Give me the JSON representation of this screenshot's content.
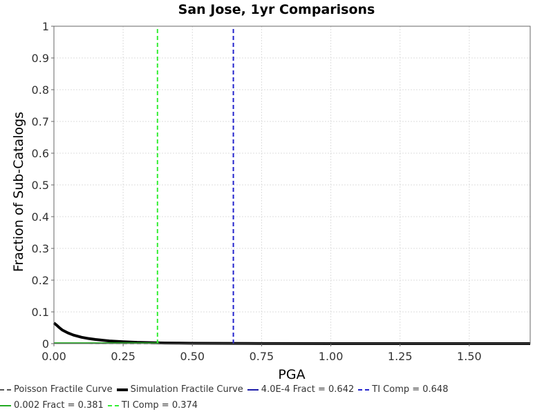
{
  "chart_data": {
    "type": "line",
    "title": "San Jose, 1yr Comparisons",
    "xlabel": "PGA",
    "ylabel": "Fraction of Sub-Catalogs",
    "xlim": [
      0,
      1.72
    ],
    "ylim": [
      0,
      1
    ],
    "grid": true,
    "x_ticks": [
      "0.00",
      "0.25",
      "0.50",
      "0.75",
      "1.00",
      "1.25",
      "1.50"
    ],
    "x_tick_values": [
      0,
      0.25,
      0.5,
      0.75,
      1.0,
      1.25,
      1.5
    ],
    "y_ticks": [
      "0",
      "0.1",
      "0.2",
      "0.3",
      "0.4",
      "0.5",
      "0.6",
      "0.7",
      "0.8",
      "0.9",
      "1"
    ],
    "y_tick_values": [
      0,
      0.1,
      0.2,
      0.3,
      0.4,
      0.5,
      0.6,
      0.7,
      0.8,
      0.9,
      1.0
    ],
    "legend_placement": "bottom",
    "series": [
      {
        "name": "Poisson Fractile Curve",
        "color": "#555555",
        "style": "dashed",
        "x": [
          0.0,
          0.05,
          0.1,
          0.2,
          0.3,
          0.4,
          0.5,
          0.6,
          0.7,
          0.8,
          1.0,
          1.2,
          1.4,
          1.6,
          1.72
        ],
        "y": [
          0.001,
          0.001,
          0.001,
          0.0008,
          0.0005,
          0.0004,
          0.0003,
          0.0002,
          0.0001,
          0.0001,
          0.0,
          0.0,
          0.0,
          0.0,
          0.0
        ]
      },
      {
        "name": "Simulation Fractile Curve",
        "color": "#000000",
        "style": "solid-thick",
        "x": [
          0.0,
          0.01,
          0.02,
          0.03,
          0.05,
          0.07,
          0.1,
          0.125,
          0.15,
          0.2,
          0.25,
          0.3,
          0.35,
          0.4,
          0.45,
          0.5,
          0.6,
          0.7,
          0.8,
          1.0,
          1.2,
          1.4,
          1.6,
          1.72
        ],
        "y": [
          0.065,
          0.058,
          0.05,
          0.043,
          0.034,
          0.027,
          0.02,
          0.016,
          0.013,
          0.0085,
          0.006,
          0.004,
          0.003,
          0.002,
          0.0015,
          0.001,
          0.0007,
          0.0005,
          0.0003,
          0.0001,
          0.0,
          0.0,
          0.0,
          0.0
        ]
      },
      {
        "name": "4.0E-4 Fract = 0.642",
        "color": "#1a1aa8",
        "style": "solid",
        "x": [
          0.642,
          0.642
        ],
        "y": [
          0,
          0
        ]
      },
      {
        "name": "TI Comp = 0.648",
        "color": "#2222cc",
        "style": "dashed",
        "x": [
          0.648,
          0.648
        ],
        "y": [
          0,
          1
        ]
      },
      {
        "name": "0.002 Fract = 0.381",
        "color": "#22aa22",
        "style": "solid",
        "x": [
          0.0,
          0.381
        ],
        "y": [
          0.002,
          0.002
        ]
      },
      {
        "name": "TI Comp = 0.374",
        "color": "#33ee33",
        "style": "dashed",
        "x": [
          0.374,
          0.374
        ],
        "y": [
          0,
          1
        ]
      }
    ]
  }
}
